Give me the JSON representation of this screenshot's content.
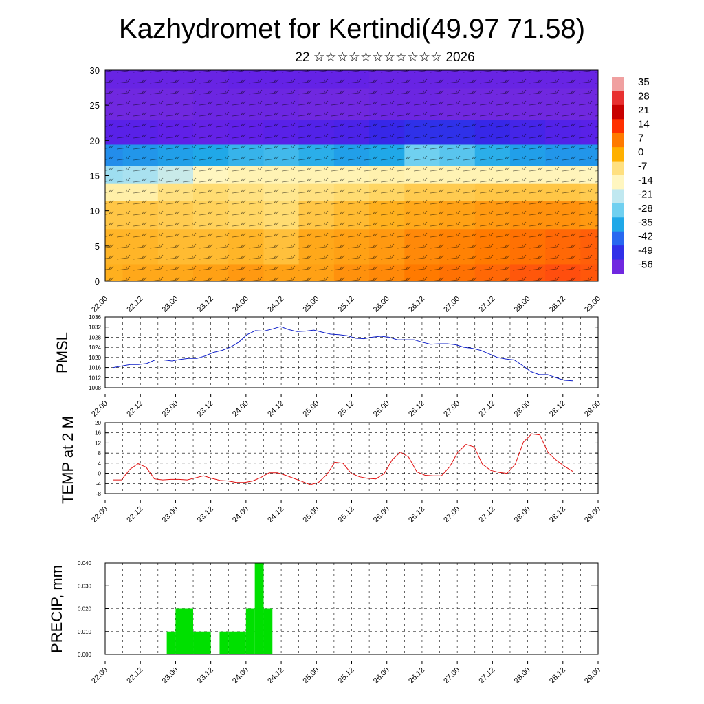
{
  "title": "Kazhydromet for Kertindi(49.97 71.58)",
  "subtitle": "22 ☆☆☆☆☆☆☆☆☆☆☆ 2026",
  "x_tick_labels": [
    "22.00",
    "22.12",
    "23.00",
    "23.12",
    "24.00",
    "24.12",
    "25.00",
    "25.12",
    "26.00",
    "26.12",
    "27.00",
    "27.12",
    "28.00",
    "28.12",
    "29.00"
  ],
  "chart_data": [
    {
      "type": "heatmap",
      "title": "Temperature cross-section with wind barbs",
      "x_ticks": [
        "22.00",
        "22.12",
        "23.00",
        "23.12",
        "24.00",
        "24.12",
        "25.00",
        "25.12",
        "26.00",
        "26.12",
        "27.00",
        "27.12",
        "28.00",
        "28.12",
        "29.00"
      ],
      "y_ticks": [
        0,
        5,
        10,
        15,
        20,
        25,
        30
      ],
      "ylim": [
        0,
        30
      ],
      "colorbar_labels": [
        "35",
        "28",
        "21",
        "14",
        "7",
        "0",
        "-7",
        "-14",
        "-21",
        "-28",
        "-35",
        "-42",
        "-49",
        "-56"
      ],
      "colorbar_colors": [
        "#f0a0a0",
        "#e83030",
        "#c80000",
        "#ff3000",
        "#ff7a00",
        "#ffb000",
        "#ffe080",
        "#fff6c0",
        "#c0e8f0",
        "#70d0f0",
        "#20a8e8",
        "#2868f0",
        "#3030e8",
        "#7028e0"
      ],
      "levels": [
        {
          "y": 0,
          "values": [
            7,
            8,
            8,
            9,
            10,
            9,
            9,
            11,
            12,
            14,
            15,
            16,
            18,
            19,
            18
          ]
        },
        {
          "y": 5,
          "values": [
            6,
            6,
            5,
            5,
            6,
            4,
            8,
            9,
            10,
            12,
            13,
            14,
            15,
            16,
            17
          ]
        },
        {
          "y": 10,
          "values": [
            3,
            3,
            2,
            1,
            0,
            -2,
            3,
            5,
            7,
            8,
            9,
            10,
            11,
            11,
            10
          ]
        },
        {
          "y": 13,
          "values": [
            -10,
            -10,
            -4,
            -2,
            -4,
            -6,
            -4,
            -2,
            0,
            2,
            2,
            3,
            3,
            3,
            2
          ]
        },
        {
          "y": 15,
          "values": [
            -24,
            -23,
            -20,
            -14,
            -12,
            -12,
            -12,
            -12,
            -11,
            -12,
            -12,
            -12,
            -13,
            -13,
            -14
          ]
        },
        {
          "y": 18,
          "values": [
            -38,
            -37,
            -36,
            -35,
            -33,
            -32,
            -34,
            -36,
            -35,
            -28,
            -30,
            -34,
            -36,
            -37,
            -37
          ]
        },
        {
          "y": 21,
          "values": [
            -55,
            -55,
            -56,
            -57,
            -56,
            -55,
            -54,
            -53,
            -50,
            -48,
            -48,
            -50,
            -52,
            -54,
            -55
          ]
        },
        {
          "y": 25,
          "values": [
            -60,
            -61,
            -60,
            -59,
            -59,
            -59,
            -60,
            -60,
            -59,
            -59,
            -60,
            -60,
            -60,
            -60,
            -60
          ]
        },
        {
          "y": 30,
          "values": [
            -58,
            -58,
            -58,
            -58,
            -57,
            -57,
            -57,
            -57,
            -58,
            -58,
            -58,
            -58,
            -58,
            -58,
            -58
          ]
        }
      ]
    },
    {
      "type": "line",
      "ylabel": "PMSL",
      "ylim": [
        1008,
        1036
      ],
      "y_ticks": [
        1008,
        1012,
        1016,
        1020,
        1024,
        1028,
        1032,
        1036
      ],
      "color": "#1020c8",
      "x_ticks": [
        "22.00",
        "22.12",
        "23.00",
        "23.12",
        "24.00",
        "24.12",
        "25.00",
        "25.12",
        "26.00",
        "26.12",
        "27.00",
        "27.12",
        "28.00",
        "28.12",
        "29.00"
      ],
      "values": [
        1016,
        1016.6,
        1017.2,
        1017.2,
        1017.6,
        1019,
        1019,
        1018.6,
        1019.2,
        1019.6,
        1019.6,
        1020.6,
        1022,
        1022.8,
        1024,
        1026,
        1029,
        1030.6,
        1030.4,
        1031.2,
        1032.2,
        1031,
        1030.2,
        1030.4,
        1030.8,
        1030,
        1029.2,
        1029,
        1028.6,
        1027.6,
        1027.4,
        1028,
        1028.4,
        1028,
        1027,
        1027,
        1027,
        1026,
        1025.2,
        1025.4,
        1025.4,
        1025,
        1024,
        1023.6,
        1022.8,
        1021.4,
        1020,
        1019.4,
        1019,
        1016.8,
        1014.4,
        1013.2,
        1013.2,
        1012,
        1011,
        1010.8
      ]
    },
    {
      "type": "line",
      "ylabel": "TEMP at 2 M",
      "ylim": [
        -8,
        20
      ],
      "y_ticks": [
        -8,
        -4,
        0,
        4,
        8,
        12,
        16,
        20
      ],
      "color": "#e01010",
      "x_ticks": [
        "22.00",
        "22.12",
        "23.00",
        "23.12",
        "24.00",
        "24.12",
        "25.00",
        "25.12",
        "26.00",
        "26.12",
        "27.00",
        "27.12",
        "28.00",
        "28.12",
        "29.00"
      ],
      "values": [
        -2.6,
        -2.6,
        1.6,
        3.8,
        2.4,
        -2.2,
        -2.6,
        -2.4,
        -2.4,
        -2.6,
        -1.8,
        -1,
        -2,
        -2.8,
        -3,
        -3.6,
        -3.6,
        -3,
        -1.6,
        0.2,
        0.2,
        -0.8,
        -2,
        -3.2,
        -4.4,
        -3.6,
        -0.6,
        4.4,
        4,
        0,
        -1.4,
        -2,
        -2.2,
        -0.2,
        5.4,
        8.4,
        6.4,
        0.6,
        -0.8,
        -1,
        -1,
        2.6,
        8.4,
        11.4,
        10.4,
        3.6,
        1.2,
        0.4,
        0,
        3.6,
        12.4,
        15.6,
        15.2,
        8.2,
        5.2,
        2.8,
        0.8
      ]
    },
    {
      "type": "bar",
      "ylabel": "PRECIP, mm",
      "ylim": [
        0,
        0.04
      ],
      "y_ticks": [
        "0.000",
        "0.010",
        "0.020",
        "0.030",
        "0.040"
      ],
      "color": "#00e000",
      "x_ticks": [
        "22.00",
        "22.12",
        "23.00",
        "23.12",
        "24.00",
        "24.12",
        "25.00",
        "25.12",
        "26.00",
        "26.12",
        "27.00",
        "27.12",
        "28.00",
        "28.12",
        "29.00"
      ],
      "bars": [
        {
          "start_hour": 21,
          "end_hour": 24,
          "value": 0.01
        },
        {
          "start_hour": 24,
          "end_hour": 30,
          "value": 0.02
        },
        {
          "start_hour": 30,
          "end_hour": 36,
          "value": 0.01
        },
        {
          "start_hour": 39,
          "end_hour": 42,
          "value": 0.01
        },
        {
          "start_hour": 42,
          "end_hour": 48,
          "value": 0.01
        },
        {
          "start_hour": 48,
          "end_hour": 51,
          "value": 0.02
        },
        {
          "start_hour": 51,
          "end_hour": 54,
          "value": 0.04
        },
        {
          "start_hour": 54,
          "end_hour": 57,
          "value": 0.02
        }
      ]
    }
  ]
}
